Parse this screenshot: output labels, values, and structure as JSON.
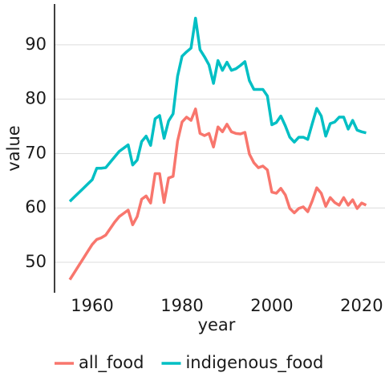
{
  "chart_data": {
    "type": "line",
    "x": [
      1955,
      1956,
      1957,
      1958,
      1959,
      1960,
      1961,
      1962,
      1963,
      1964,
      1965,
      1966,
      1967,
      1968,
      1969,
      1970,
      1971,
      1972,
      1973,
      1974,
      1975,
      1976,
      1977,
      1978,
      1979,
      1980,
      1981,
      1982,
      1983,
      1984,
      1985,
      1986,
      1987,
      1988,
      1989,
      1990,
      1991,
      1992,
      1993,
      1994,
      1995,
      1996,
      1997,
      1998,
      1999,
      2000,
      2001,
      2002,
      2003,
      2004,
      2005,
      2006,
      2007,
      2008,
      2009,
      2010,
      2011,
      2012,
      2013,
      2014,
      2015,
      2016,
      2017,
      2018,
      2019,
      2020,
      2021
    ],
    "series": [
      {
        "name": "all_food",
        "color": "#F8766D",
        "values": [
          46.8,
          48.1,
          49.4,
          50.7,
          52.0,
          53.3,
          54.2,
          54.5,
          55.0,
          56.2,
          57.4,
          58.4,
          59.0,
          59.6,
          56.9,
          58.4,
          61.6,
          62.2,
          60.9,
          66.3,
          66.3,
          61.0,
          65.5,
          65.8,
          72.3,
          75.8,
          76.7,
          76.1,
          78.2,
          73.7,
          73.3,
          73.7,
          71.2,
          74.9,
          74.0,
          75.4,
          74.0,
          73.7,
          73.6,
          73.9,
          69.9,
          68.3,
          67.4,
          67.7,
          67.0,
          62.9,
          62.7,
          63.6,
          62.4,
          59.9,
          59.1,
          59.9,
          60.2,
          59.3,
          61.3,
          63.7,
          62.7,
          60.3,
          61.9,
          61.0,
          60.5,
          61.9,
          60.5,
          61.5,
          59.9,
          60.9,
          60.5
        ]
      },
      {
        "name": "indigenous_food",
        "color": "#00BFC4",
        "values": [
          61.2,
          62.0,
          62.8,
          63.6,
          64.4,
          65.2,
          67.3,
          67.3,
          67.4,
          68.4,
          69.4,
          70.4,
          71.0,
          71.6,
          67.9,
          68.8,
          72.2,
          73.2,
          71.5,
          76.4,
          77.0,
          72.8,
          76.0,
          77.3,
          84.2,
          87.9,
          88.7,
          89.4,
          94.9,
          89.1,
          87.8,
          86.3,
          82.9,
          87.1,
          85.3,
          86.8,
          85.3,
          85.6,
          86.2,
          86.9,
          83.4,
          81.8,
          81.8,
          81.8,
          80.6,
          75.3,
          75.7,
          76.9,
          75.1,
          73.0,
          72.1,
          73.0,
          73.0,
          72.6,
          75.5,
          78.3,
          76.9,
          73.2,
          75.5,
          75.8,
          76.7,
          76.7,
          74.5,
          76.1,
          74.3,
          74.0,
          73.8
        ]
      }
    ],
    "xlabel": "year",
    "ylabel": "value",
    "xlim": [
      1951.6,
      2025.2
    ],
    "xticks": [
      1960,
      1980,
      2000,
      2020
    ],
    "ylim": [
      44.4,
      97.5
    ],
    "yticks": [
      50,
      60,
      70,
      80,
      90
    ],
    "grid": true,
    "legend": "bottom"
  }
}
